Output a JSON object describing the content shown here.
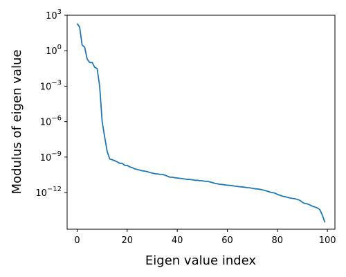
{
  "chart_data": {
    "type": "line",
    "title": "",
    "xlabel": "Eigen value index",
    "ylabel": "Modulus of eigen value",
    "xlim": [
      -4,
      103
    ],
    "ylim_log10": [
      -15.1,
      3.0
    ],
    "y_scale": "log",
    "grid": false,
    "x_ticks": [
      0,
      20,
      40,
      60,
      80,
      100
    ],
    "y_ticks": [
      {
        "base": "10",
        "exp": "3",
        "log10": 3
      },
      {
        "base": "10",
        "exp": "0",
        "log10": 0
      },
      {
        "base": "10",
        "exp": "−3",
        "log10": -3
      },
      {
        "base": "10",
        "exp": "−6",
        "log10": -6
      },
      {
        "base": "10",
        "exp": "−9",
        "log10": -9
      },
      {
        "base": "10",
        "exp": "−12",
        "log10": -12
      }
    ],
    "series": [
      {
        "color": "#1f77b4",
        "x": [
          0,
          1,
          2,
          3,
          4,
          5,
          6,
          7,
          8,
          9,
          10,
          11,
          12,
          13,
          14,
          15,
          16,
          17,
          18,
          19,
          20,
          21,
          22,
          23,
          24,
          25,
          26,
          27,
          28,
          29,
          30,
          31,
          32,
          33,
          34,
          35,
          36,
          37,
          38,
          39,
          40,
          41,
          42,
          43,
          44,
          45,
          46,
          47,
          48,
          49,
          50,
          51,
          52,
          53,
          54,
          55,
          56,
          57,
          58,
          59,
          60,
          61,
          62,
          63,
          64,
          65,
          66,
          67,
          68,
          69,
          70,
          71,
          72,
          73,
          74,
          75,
          76,
          77,
          78,
          79,
          80,
          81,
          82,
          83,
          84,
          85,
          86,
          87,
          88,
          89,
          90,
          91,
          92,
          93,
          94,
          95,
          96,
          97,
          98,
          99
        ],
        "y": [
          "2e2",
          "1e2",
          "3",
          "2",
          "2e-1",
          "1e-1",
          "1e-1",
          "4e-2",
          "3e-2",
          "1e-3",
          "1e-6",
          "5e-8",
          "3e-9",
          "7e-10",
          "6e-10",
          "5e-10",
          "4e-10",
          "3e-10",
          "3e-10",
          "2e-10",
          "2e-10",
          "1.5e-10",
          "1.3e-10",
          "1e-10",
          "9e-11",
          "8e-11",
          "7e-11",
          "6.5e-11",
          "6e-11",
          "5e-11",
          "4.5e-11",
          "4e-11",
          "3.8e-11",
          "3.5e-11",
          "3.5e-11",
          "3e-11",
          "2.5e-11",
          "2e-11",
          "2e-11",
          "1.8e-11",
          "1.7e-11",
          "1.6e-11",
          "1.5e-11",
          "1.4e-11",
          "1.3e-11",
          "1.3e-11",
          "1.2e-11",
          "1.1e-11",
          "1.1e-11",
          "1e-11",
          "1e-11",
          "9e-12",
          "9e-12",
          "8e-12",
          "7e-12",
          "6e-12",
          "5.5e-12",
          "5e-12",
          "4.8e-12",
          "4.5e-12",
          "4.2e-12",
          "4e-12",
          "3.8e-12",
          "3.5e-12",
          "3.3e-12",
          "3.1e-12",
          "3e-12",
          "2.8e-12",
          "2.6e-12",
          "2.5e-12",
          "2.3e-12",
          "2.1e-12",
          "2e-12",
          "1.9e-12",
          "1.7e-12",
          "1.5e-12",
          "1.3e-12",
          "1.1e-12",
          "1e-12",
          "9e-13",
          "7e-13",
          "6e-13",
          "5e-13",
          "4.5e-13",
          "4e-13",
          "3.5e-13",
          "3.2e-13",
          "3e-13",
          "2.6e-13",
          "2.2e-13",
          "1.5e-13",
          "1.2e-13",
          "1.1e-13",
          "9e-14",
          "7e-14",
          "6e-14",
          "5e-14",
          "3.5e-14",
          "1.2e-14",
          "3e-15"
        ]
      }
    ]
  }
}
